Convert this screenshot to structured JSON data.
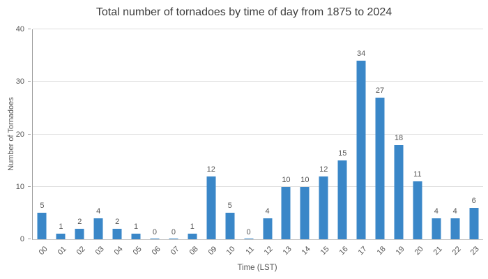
{
  "chart_data": {
    "type": "bar",
    "title": "Total number of tornadoes by time of day from 1875 to 2024",
    "xlabel": "Time (LST)",
    "ylabel": "Number of Tornadoes",
    "categories": [
      "00",
      "01",
      "02",
      "03",
      "04",
      "05",
      "06",
      "07",
      "08",
      "09",
      "10",
      "11",
      "12",
      "13",
      "14",
      "15",
      "16",
      "17",
      "18",
      "19",
      "20",
      "21",
      "22",
      "23"
    ],
    "values": [
      5,
      1,
      2,
      4,
      2,
      1,
      0,
      0,
      1,
      12,
      5,
      0,
      4,
      10,
      10,
      12,
      15,
      34,
      27,
      18,
      11,
      4,
      4,
      6
    ],
    "ylim": [
      0,
      40
    ],
    "yticks": [
      0,
      10,
      20,
      30,
      40
    ],
    "bar_color": "#3a87c8",
    "grid": true,
    "legend_position": "none",
    "data_labels": true
  }
}
